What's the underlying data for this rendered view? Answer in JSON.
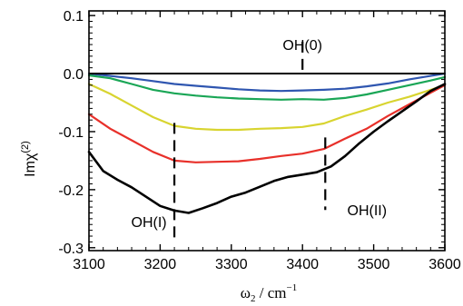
{
  "chart_data": {
    "type": "line",
    "xlabel_symbol": "ω",
    "xlabel_subscript": "2",
    "xlabel_unit": " / cm",
    "xlabel_unit_sup": "−1",
    "ylabel_main": "Imχ",
    "ylabel_sup": "(2)",
    "xlim": [
      3100,
      3600
    ],
    "ylim": [
      -0.305,
      0.108
    ],
    "x_ticks": [
      "3100",
      "3200",
      "3300",
      "3400",
      "3500",
      "3600"
    ],
    "y_ticks": [
      "0.1",
      "0.0",
      "-0.1",
      "-0.2",
      "-0.3"
    ],
    "grid": false,
    "zero_line": 0.0,
    "series": [
      {
        "color": "#2f56b0",
        "x": [
          3100,
          3130,
          3160,
          3190,
          3220,
          3250,
          3280,
          3310,
          3340,
          3370,
          3400,
          3430,
          3460,
          3490,
          3520,
          3550,
          3580,
          3600
        ],
        "y": [
          0.0,
          -0.004,
          -0.008,
          -0.013,
          -0.018,
          -0.021,
          -0.024,
          -0.027,
          -0.029,
          -0.03,
          -0.029,
          -0.028,
          -0.026,
          -0.022,
          -0.017,
          -0.01,
          -0.004,
          0.0
        ]
      },
      {
        "color": "#1aa656",
        "x": [
          3100,
          3130,
          3160,
          3190,
          3220,
          3250,
          3280,
          3310,
          3340,
          3370,
          3400,
          3430,
          3460,
          3490,
          3520,
          3550,
          3580,
          3600
        ],
        "y": [
          -0.003,
          -0.008,
          -0.018,
          -0.028,
          -0.034,
          -0.038,
          -0.041,
          -0.043,
          -0.044,
          -0.045,
          -0.044,
          -0.045,
          -0.042,
          -0.036,
          -0.028,
          -0.02,
          -0.012,
          -0.006
        ]
      },
      {
        "color": "#d8d430",
        "x": [
          3100,
          3130,
          3160,
          3190,
          3220,
          3250,
          3280,
          3310,
          3340,
          3370,
          3400,
          3430,
          3460,
          3490,
          3520,
          3550,
          3580,
          3600
        ],
        "y": [
          -0.018,
          -0.035,
          -0.055,
          -0.075,
          -0.09,
          -0.095,
          -0.097,
          -0.097,
          -0.095,
          -0.094,
          -0.092,
          -0.086,
          -0.073,
          -0.062,
          -0.05,
          -0.04,
          -0.028,
          -0.02
        ]
      },
      {
        "color": "#e8302a",
        "x": [
          3100,
          3130,
          3160,
          3190,
          3220,
          3250,
          3280,
          3310,
          3340,
          3370,
          3400,
          3430,
          3460,
          3490,
          3520,
          3550,
          3580,
          3600
        ],
        "y": [
          -0.07,
          -0.095,
          -0.115,
          -0.135,
          -0.15,
          -0.153,
          -0.152,
          -0.151,
          -0.147,
          -0.142,
          -0.138,
          -0.13,
          -0.112,
          -0.095,
          -0.073,
          -0.053,
          -0.033,
          -0.02
        ]
      },
      {
        "color": "#000000",
        "x": [
          3100,
          3120,
          3140,
          3160,
          3180,
          3200,
          3220,
          3240,
          3260,
          3280,
          3300,
          3320,
          3340,
          3360,
          3380,
          3400,
          3420,
          3440,
          3460,
          3480,
          3500,
          3520,
          3540,
          3560,
          3580,
          3600
        ],
        "y": [
          -0.135,
          -0.168,
          -0.183,
          -0.196,
          -0.212,
          -0.228,
          -0.236,
          -0.24,
          -0.232,
          -0.223,
          -0.212,
          -0.205,
          -0.195,
          -0.185,
          -0.178,
          -0.174,
          -0.17,
          -0.16,
          -0.142,
          -0.12,
          -0.1,
          -0.082,
          -0.065,
          -0.048,
          -0.03,
          -0.018
        ]
      }
    ],
    "annotations": [
      {
        "label": "OH(0)",
        "x": 3400,
        "y_from": 0.055,
        "y_to": 0.0
      },
      {
        "label": "OH(I)",
        "x": 3220,
        "y_from": -0.085,
        "y_to": -0.285
      },
      {
        "label": "OH(II)",
        "x": 3432,
        "y_from": -0.11,
        "y_to": -0.235
      }
    ]
  }
}
